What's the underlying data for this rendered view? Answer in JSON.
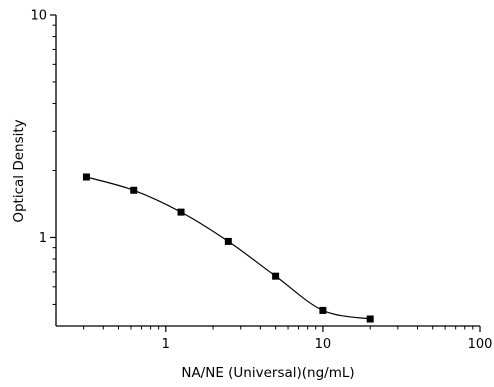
{
  "chart_data": {
    "type": "line",
    "title": "",
    "xlabel": "NA/NE (Universal)(ng/mL)",
    "ylabel": "Optical Density",
    "x_scale": "log",
    "y_scale": "log",
    "xlim": [
      0.2,
      100
    ],
    "ylim": [
      0.4,
      10
    ],
    "x_ticks": [
      1,
      10,
      100
    ],
    "x_tick_labels": [
      "1",
      "10",
      "100"
    ],
    "y_ticks": [
      1,
      10
    ],
    "y_tick_labels": [
      "1",
      "10"
    ],
    "grid": false,
    "legend": "none",
    "series": [
      {
        "x": [
          0.3125,
          0.625,
          1.25,
          2.5,
          5,
          10,
          20
        ],
        "y": [
          1.87,
          1.63,
          1.3,
          0.96,
          0.67,
          0.47,
          0.43
        ],
        "marker": "square",
        "fit": "smooth-curve"
      }
    ],
    "colors": {
      "line": "#000000",
      "marker": "#000000",
      "axis": "#000000"
    }
  }
}
